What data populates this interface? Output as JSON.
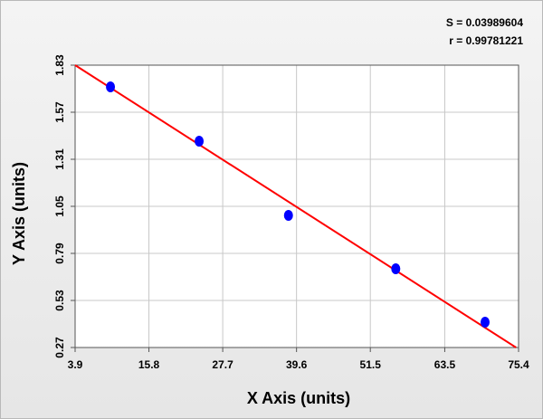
{
  "chart_data": {
    "type": "scatter",
    "annotations": [
      "S = 0.03989604",
      "r = 0.99781221"
    ],
    "x_label": "X Axis (units)",
    "y_label": "Y Axis (units)",
    "x": [
      9.6,
      23.9,
      38.3,
      55.6,
      70.0
    ],
    "values": [
      1.71,
      1.41,
      1.0,
      0.705,
      0.41
    ],
    "color": "#0000ff",
    "fit": {
      "x": [
        3.9,
        75.0
      ],
      "values": [
        1.83,
        0.27
      ],
      "color": "#ff0000"
    },
    "xlim": [
      3.9,
      75.4
    ],
    "xticks": [
      3.9,
      15.8,
      27.7,
      39.6,
      51.5,
      63.5,
      75.4
    ],
    "ylim": [
      0.27,
      1.83
    ],
    "yticks": [
      1.83,
      1.57,
      1.31,
      1.05,
      0.79,
      0.53,
      0.27
    ],
    "grid": true
  }
}
